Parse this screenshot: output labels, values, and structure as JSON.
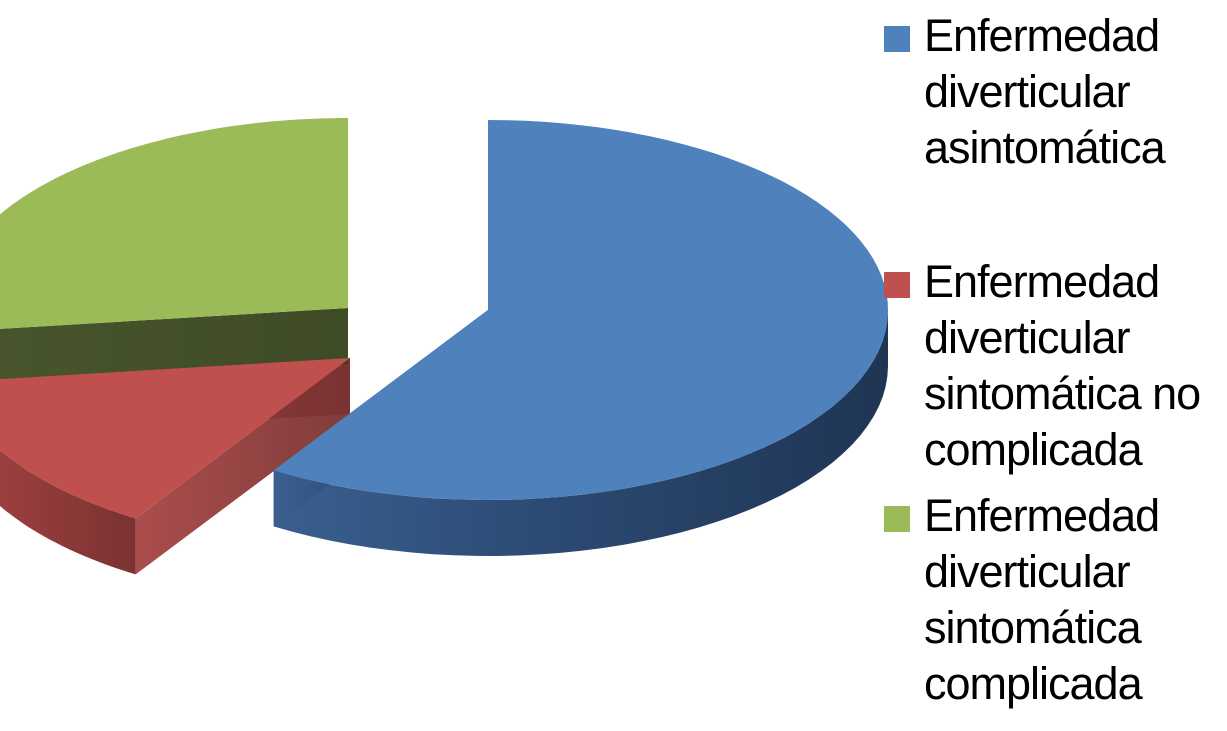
{
  "chart_data": {
    "type": "pie",
    "title": "",
    "legend_position": "right",
    "style": "3d-exploded",
    "categories": [
      "Enfermedad diverticular asintomática",
      "Enfermedad diverticular sintomática no complicada",
      "Enfermedad diverticular sintomática complicada"
    ],
    "values": [
      59,
      14,
      27
    ],
    "colors": [
      "#4F81BD",
      "#C0504D",
      "#9BBB59"
    ]
  }
}
